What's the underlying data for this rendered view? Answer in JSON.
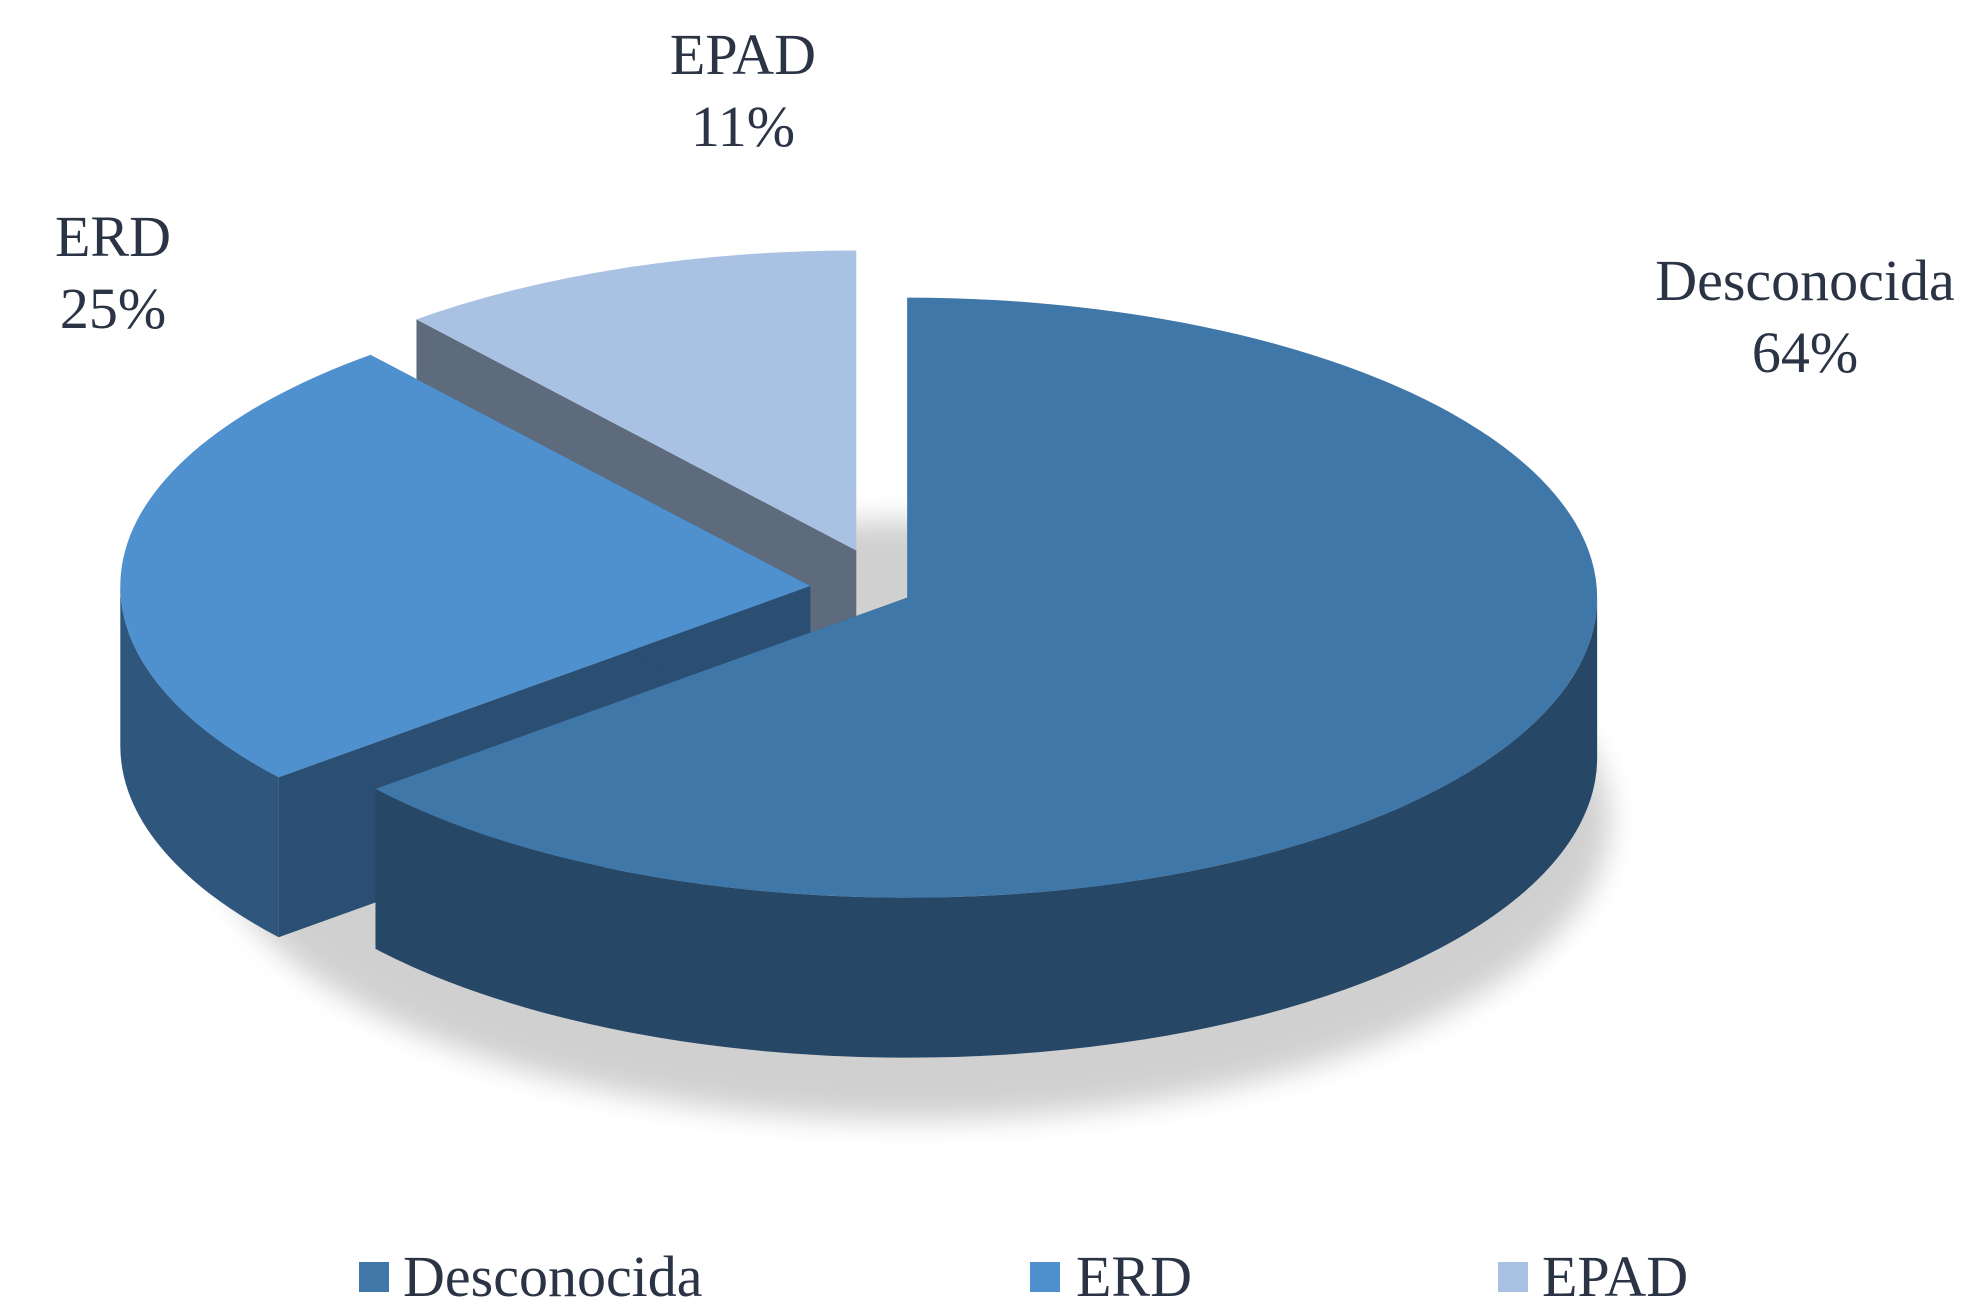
{
  "chart_data": {
    "type": "pie3d",
    "categories": [
      "Desconocida",
      "ERD",
      "EPAD"
    ],
    "values": [
      64,
      25,
      11
    ],
    "value_labels": [
      "64%",
      "25%",
      "11%"
    ],
    "colors": [
      "#3f77a9",
      "#4f90cf",
      "#a9c2e3"
    ],
    "legend": "bottom"
  }
}
